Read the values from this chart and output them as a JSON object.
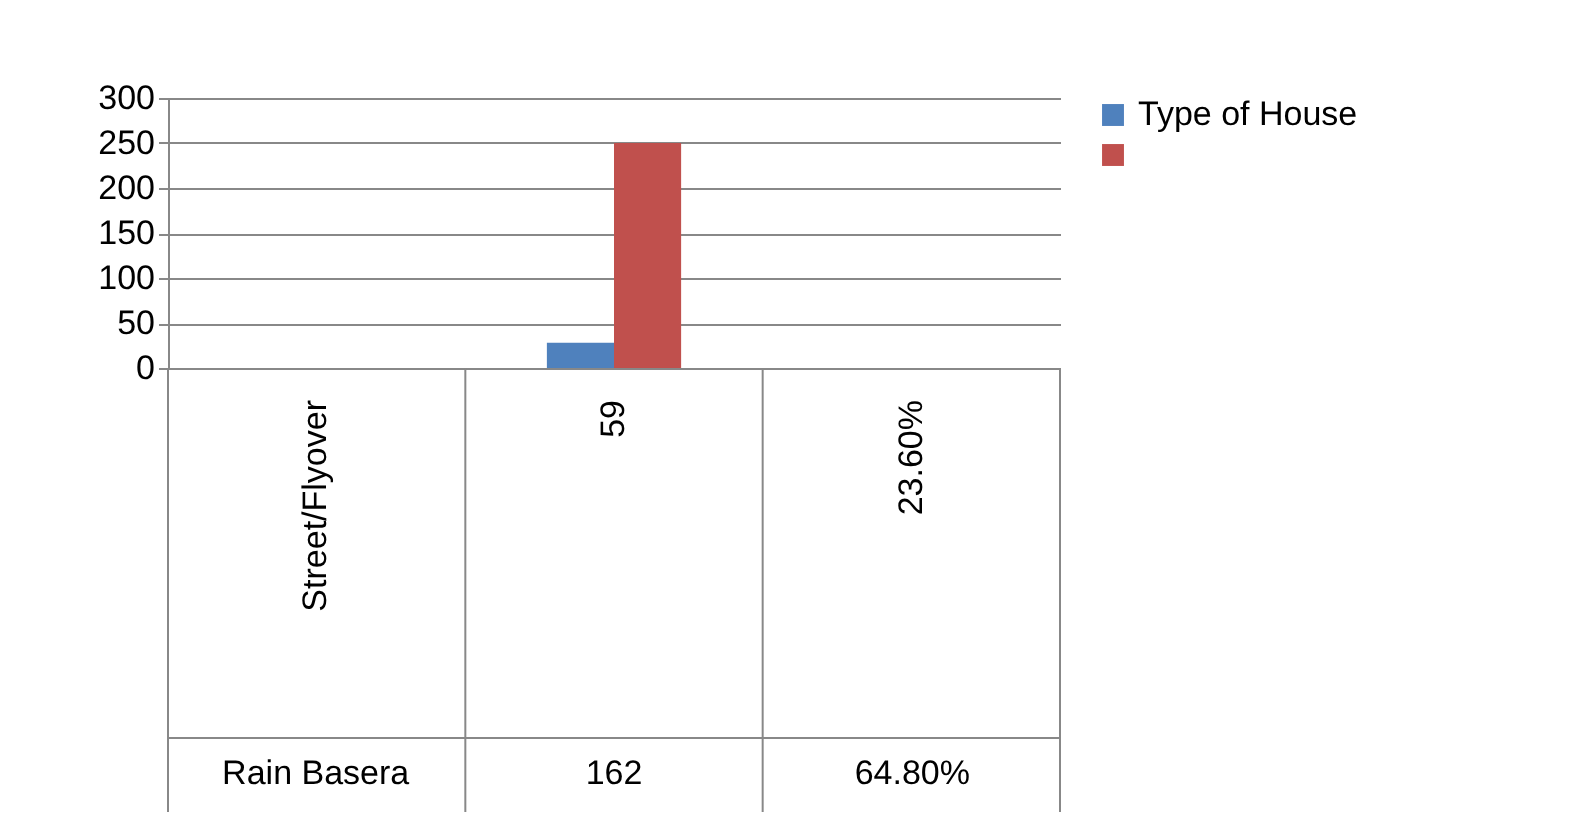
{
  "chart_data": {
    "type": "bar",
    "categories": [
      "Street/Flyover",
      "59",
      "23.60%"
    ],
    "series": [
      {
        "name": "Type of House",
        "color": "#4f81bd",
        "values": [
          null,
          28,
          null
        ]
      },
      {
        "color": "#c0504d",
        "values": [
          null,
          250,
          null
        ]
      }
    ],
    "ylim": [
      0,
      300
    ],
    "yticks": [
      0,
      50,
      100,
      150,
      200,
      250,
      300
    ],
    "grid": "y",
    "legend": "right",
    "annotations": [
      "Rain Basera",
      "162",
      "64.80%"
    ]
  }
}
